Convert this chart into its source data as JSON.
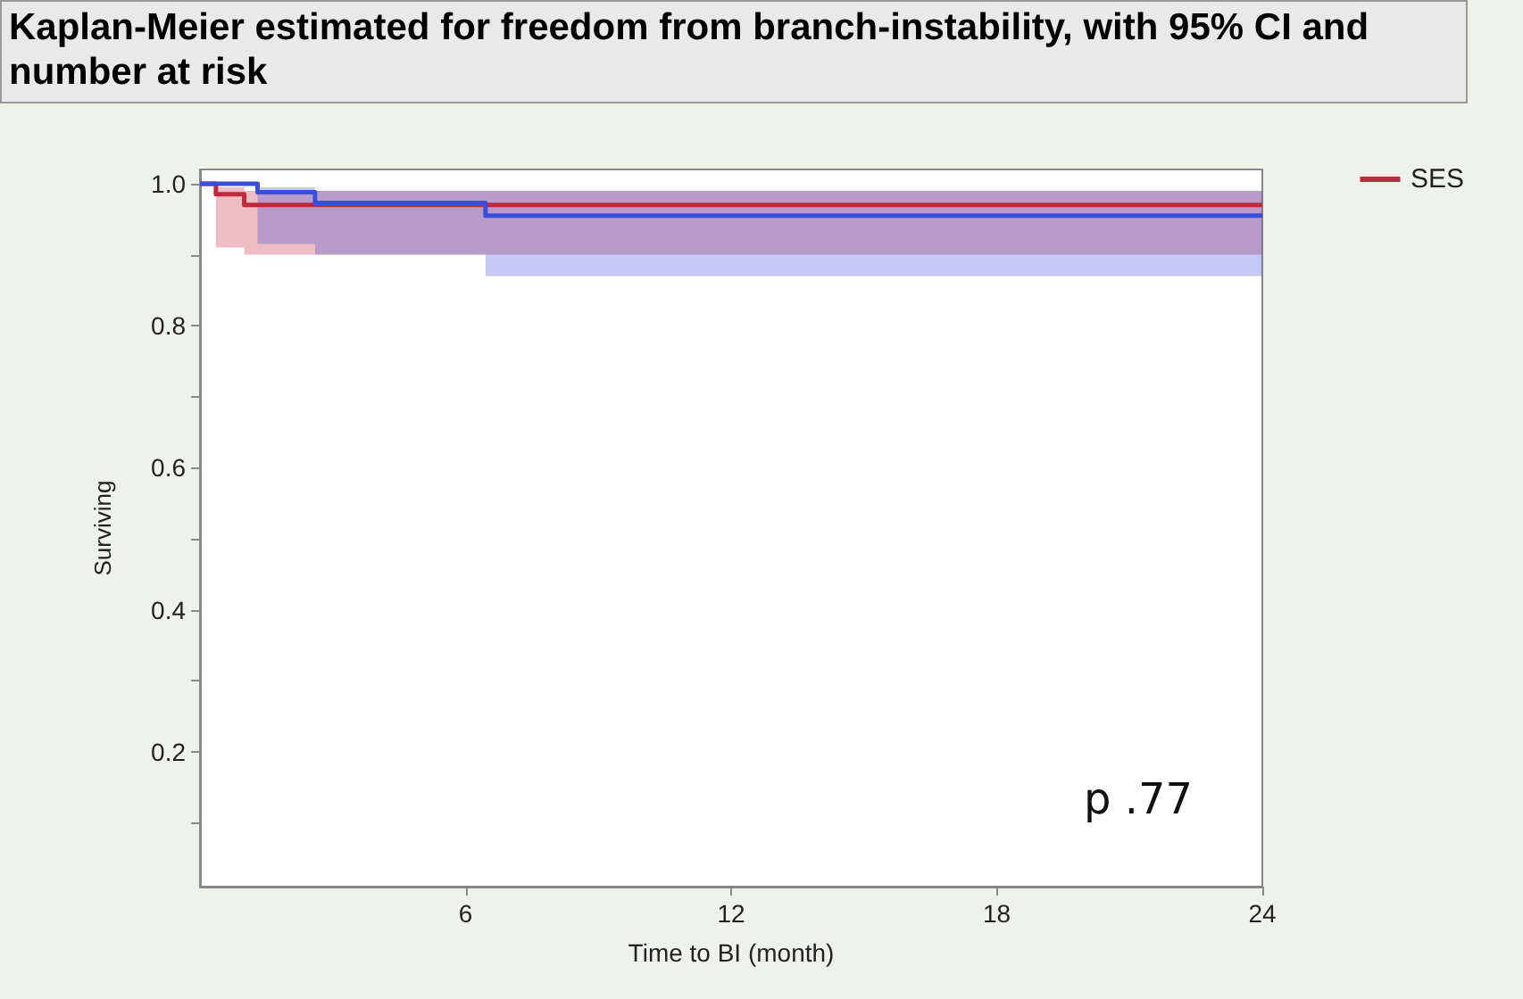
{
  "chart_data": {
    "type": "step",
    "title": "Kaplan-Meier estimated for freedom from branch-instability, with 95% CI and number at risk",
    "xlabel": "Time to BI (month)",
    "ylabel": "Surviving",
    "xlim": [
      0,
      24
    ],
    "xticks": [
      6,
      12,
      18,
      24
    ],
    "ylim": [
      0.01,
      1.02
    ],
    "yticks": [
      {
        "value": 0.1,
        "label": null
      },
      0.2,
      {
        "value": 0.3,
        "label": null
      },
      0.4,
      {
        "value": 0.5,
        "label": null
      },
      0.6,
      {
        "value": 0.7,
        "label": null
      },
      0.8,
      {
        "value": 0.9,
        "label": null
      },
      {
        "value": 1.0,
        "label": "1.0"
      }
    ],
    "grid": false,
    "legend": "top right",
    "series": [
      {
        "name": "SES",
        "color": "#c0283c",
        "x": [
          0,
          0.36,
          1.0,
          24
        ],
        "values": [
          1.0,
          0.985,
          0.97,
          0.97
        ],
        "lower": [
          1.0,
          0.91,
          0.9,
          0.9
        ],
        "upper": [
          1.0,
          0.995,
          0.99,
          0.99
        ]
      },
      {
        "color": "#3a4fd8",
        "x": [
          0,
          1.3,
          2.6,
          6.45,
          24
        ],
        "values": [
          1.0,
          0.988,
          0.973,
          0.955,
          0.955
        ],
        "lower": [
          1.0,
          0.915,
          0.9,
          0.87,
          0.87
        ],
        "upper": [
          1.0,
          0.995,
          0.99,
          0.99,
          0.99
        ]
      }
    ],
    "annotations": [
      "p .77"
    ]
  }
}
